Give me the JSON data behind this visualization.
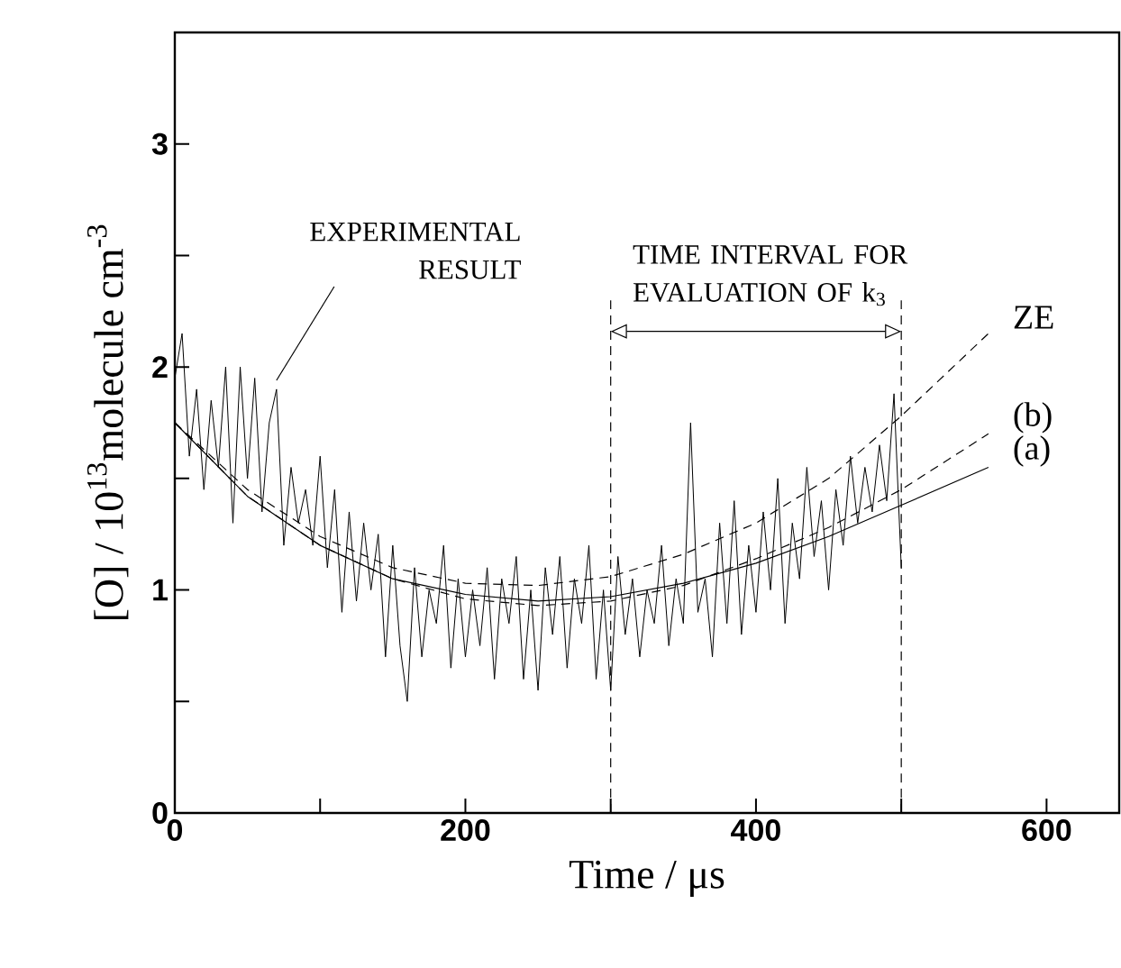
{
  "chart_data": {
    "type": "line",
    "xlabel": "Time / μs",
    "ylabel": "[O] / 10$^{13}$molecule cm$^{-3}$",
    "xlim": [
      0,
      650
    ],
    "ylim": [
      0,
      3.5
    ],
    "xticks": [
      0,
      {
        "value": 100,
        "label": null
      },
      200,
      {
        "value": 300,
        "label": null
      },
      400,
      {
        "value": 500,
        "label": null
      },
      600
    ],
    "yticks": [
      0,
      {
        "value": 0.5,
        "label": null
      },
      1,
      {
        "value": 1.5,
        "label": null
      },
      2,
      {
        "value": 2.5,
        "label": null
      },
      3
    ],
    "series": [
      {
        "color": "#000000",
        "line_style": "solid",
        "x": [
          0,
          5,
          10,
          15,
          20,
          25,
          30,
          35,
          40,
          45,
          50,
          55,
          60,
          65,
          70,
          75,
          80,
          85,
          90,
          95,
          100,
          105,
          110,
          115,
          120,
          125,
          130,
          135,
          140,
          145,
          150,
          155,
          160,
          165,
          170,
          175,
          180,
          185,
          190,
          195,
          200,
          205,
          210,
          215,
          220,
          225,
          230,
          235,
          240,
          245,
          250,
          255,
          260,
          265,
          270,
          275,
          280,
          285,
          290,
          295,
          300,
          305,
          310,
          315,
          320,
          325,
          330,
          335,
          340,
          345,
          350,
          355,
          360,
          365,
          370,
          375,
          380,
          385,
          390,
          395,
          400,
          405,
          410,
          415,
          420,
          425,
          430,
          435,
          440,
          445,
          450,
          455,
          460,
          465,
          470,
          475,
          480,
          485,
          490,
          495,
          500
        ],
        "values": [
          1.95,
          2.15,
          1.6,
          1.9,
          1.45,
          1.85,
          1.55,
          2.0,
          1.3,
          2.0,
          1.5,
          1.95,
          1.35,
          1.75,
          1.9,
          1.2,
          1.55,
          1.3,
          1.45,
          1.2,
          1.6,
          1.1,
          1.45,
          0.9,
          1.35,
          0.95,
          1.3,
          1.0,
          1.25,
          0.7,
          1.2,
          0.75,
          0.5,
          1.1,
          0.7,
          1.0,
          0.85,
          1.2,
          0.65,
          1.05,
          0.7,
          1.0,
          0.75,
          1.1,
          0.6,
          1.05,
          0.85,
          1.15,
          0.6,
          1.0,
          0.55,
          1.1,
          0.8,
          1.15,
          0.65,
          1.05,
          0.85,
          1.2,
          0.6,
          1.0,
          0.55,
          1.15,
          0.8,
          1.05,
          0.7,
          1.0,
          0.85,
          1.2,
          0.75,
          1.05,
          0.85,
          1.75,
          0.9,
          1.05,
          0.7,
          1.3,
          0.85,
          1.4,
          0.8,
          1.2,
          0.9,
          1.35,
          1.0,
          1.5,
          0.85,
          1.3,
          1.05,
          1.55,
          1.15,
          1.4,
          1.0,
          1.45,
          1.2,
          1.6,
          1.3,
          1.55,
          1.35,
          1.65,
          1.4,
          1.88,
          1.1
        ]
      },
      {
        "name": "ZE",
        "color": "#000000",
        "line_style": "dashed",
        "x": [
          0,
          50,
          100,
          150,
          200,
          250,
          300,
          350,
          400,
          450,
          500,
          560
        ],
        "values": [
          1.75,
          1.45,
          1.24,
          1.1,
          1.03,
          1.02,
          1.06,
          1.16,
          1.3,
          1.5,
          1.78,
          2.15
        ]
      },
      {
        "name": "(b)",
        "color": "#000000",
        "line_style": "dashed",
        "x": [
          0,
          50,
          100,
          150,
          200,
          250,
          300,
          350,
          400,
          450,
          500,
          560
        ],
        "values": [
          1.75,
          1.42,
          1.2,
          1.05,
          0.96,
          0.93,
          0.95,
          1.02,
          1.14,
          1.28,
          1.45,
          1.7
        ]
      },
      {
        "name": "(a)",
        "color": "#000000",
        "line_style": "solid",
        "x": [
          0,
          50,
          100,
          150,
          200,
          250,
          300,
          350,
          400,
          450,
          500,
          560
        ],
        "values": [
          1.75,
          1.42,
          1.2,
          1.05,
          0.98,
          0.95,
          0.97,
          1.03,
          1.12,
          1.24,
          1.38,
          1.55
        ]
      }
    ],
    "ref_lines": [
      {
        "axis": "x",
        "value": 300,
        "line_style": "dashed"
      },
      {
        "axis": "x",
        "value": 500,
        "line_style": "dashed"
      }
    ],
    "annotations": [
      {
        "text": "EXPERIMENTAL RESULT",
        "x": 70,
        "y": 1.94
      },
      "TIME INTERVAL FOR EVALUATION OF k$_{3}$"
    ]
  }
}
